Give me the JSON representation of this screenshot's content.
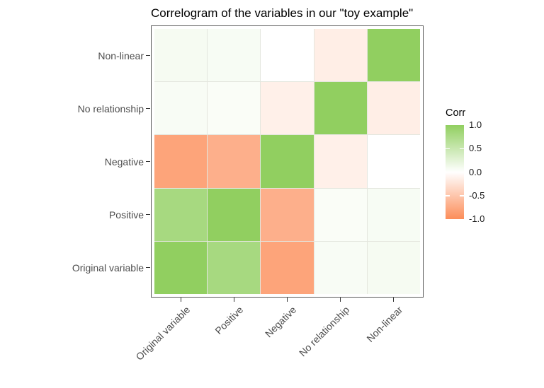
{
  "title": "Correlogram of the variables in our \"toy example\"",
  "legend": {
    "title": "Corr",
    "position": "right",
    "ticks": [
      "1.0",
      "0.5",
      "0.0",
      "-0.5",
      "-1.0"
    ],
    "tick_values": [
      1.0,
      0.5,
      0.0,
      -0.5,
      -1.0
    ],
    "limits": [
      -1.0,
      1.0
    ],
    "color_high": "#91CF60",
    "color_mid": "#FFFFFF",
    "color_low": "#FC8D59"
  },
  "chart_data": {
    "type": "heatmap",
    "title": "Correlogram of the variables in our \"toy example\"",
    "x_categories": [
      "Original variable",
      "Positive",
      "Negative",
      "No relationship",
      "Non-linear"
    ],
    "y_categories_top_to_bottom": [
      "Non-linear",
      "No relationship",
      "Negative",
      "Positive",
      "Original variable"
    ],
    "x_tick_angle_deg": 45,
    "grid": true,
    "fill_label": "Corr",
    "fill_limits": [
      -1.0,
      1.0
    ],
    "matrix_rows_top_to_bottom": [
      {
        "row": "Non-linear",
        "values": [
          0.08,
          0.07,
          0.0,
          -0.15,
          1.0
        ]
      },
      {
        "row": "No relationship",
        "values": [
          0.06,
          0.05,
          -0.13,
          1.0,
          -0.15
        ]
      },
      {
        "row": "Negative",
        "values": [
          -0.8,
          -0.7,
          1.0,
          -0.13,
          0.0
        ]
      },
      {
        "row": "Positive",
        "values": [
          0.8,
          1.0,
          -0.7,
          0.05,
          0.07
        ]
      },
      {
        "row": "Original variable",
        "values": [
          1.0,
          0.8,
          -0.8,
          0.06,
          0.08
        ]
      }
    ]
  }
}
